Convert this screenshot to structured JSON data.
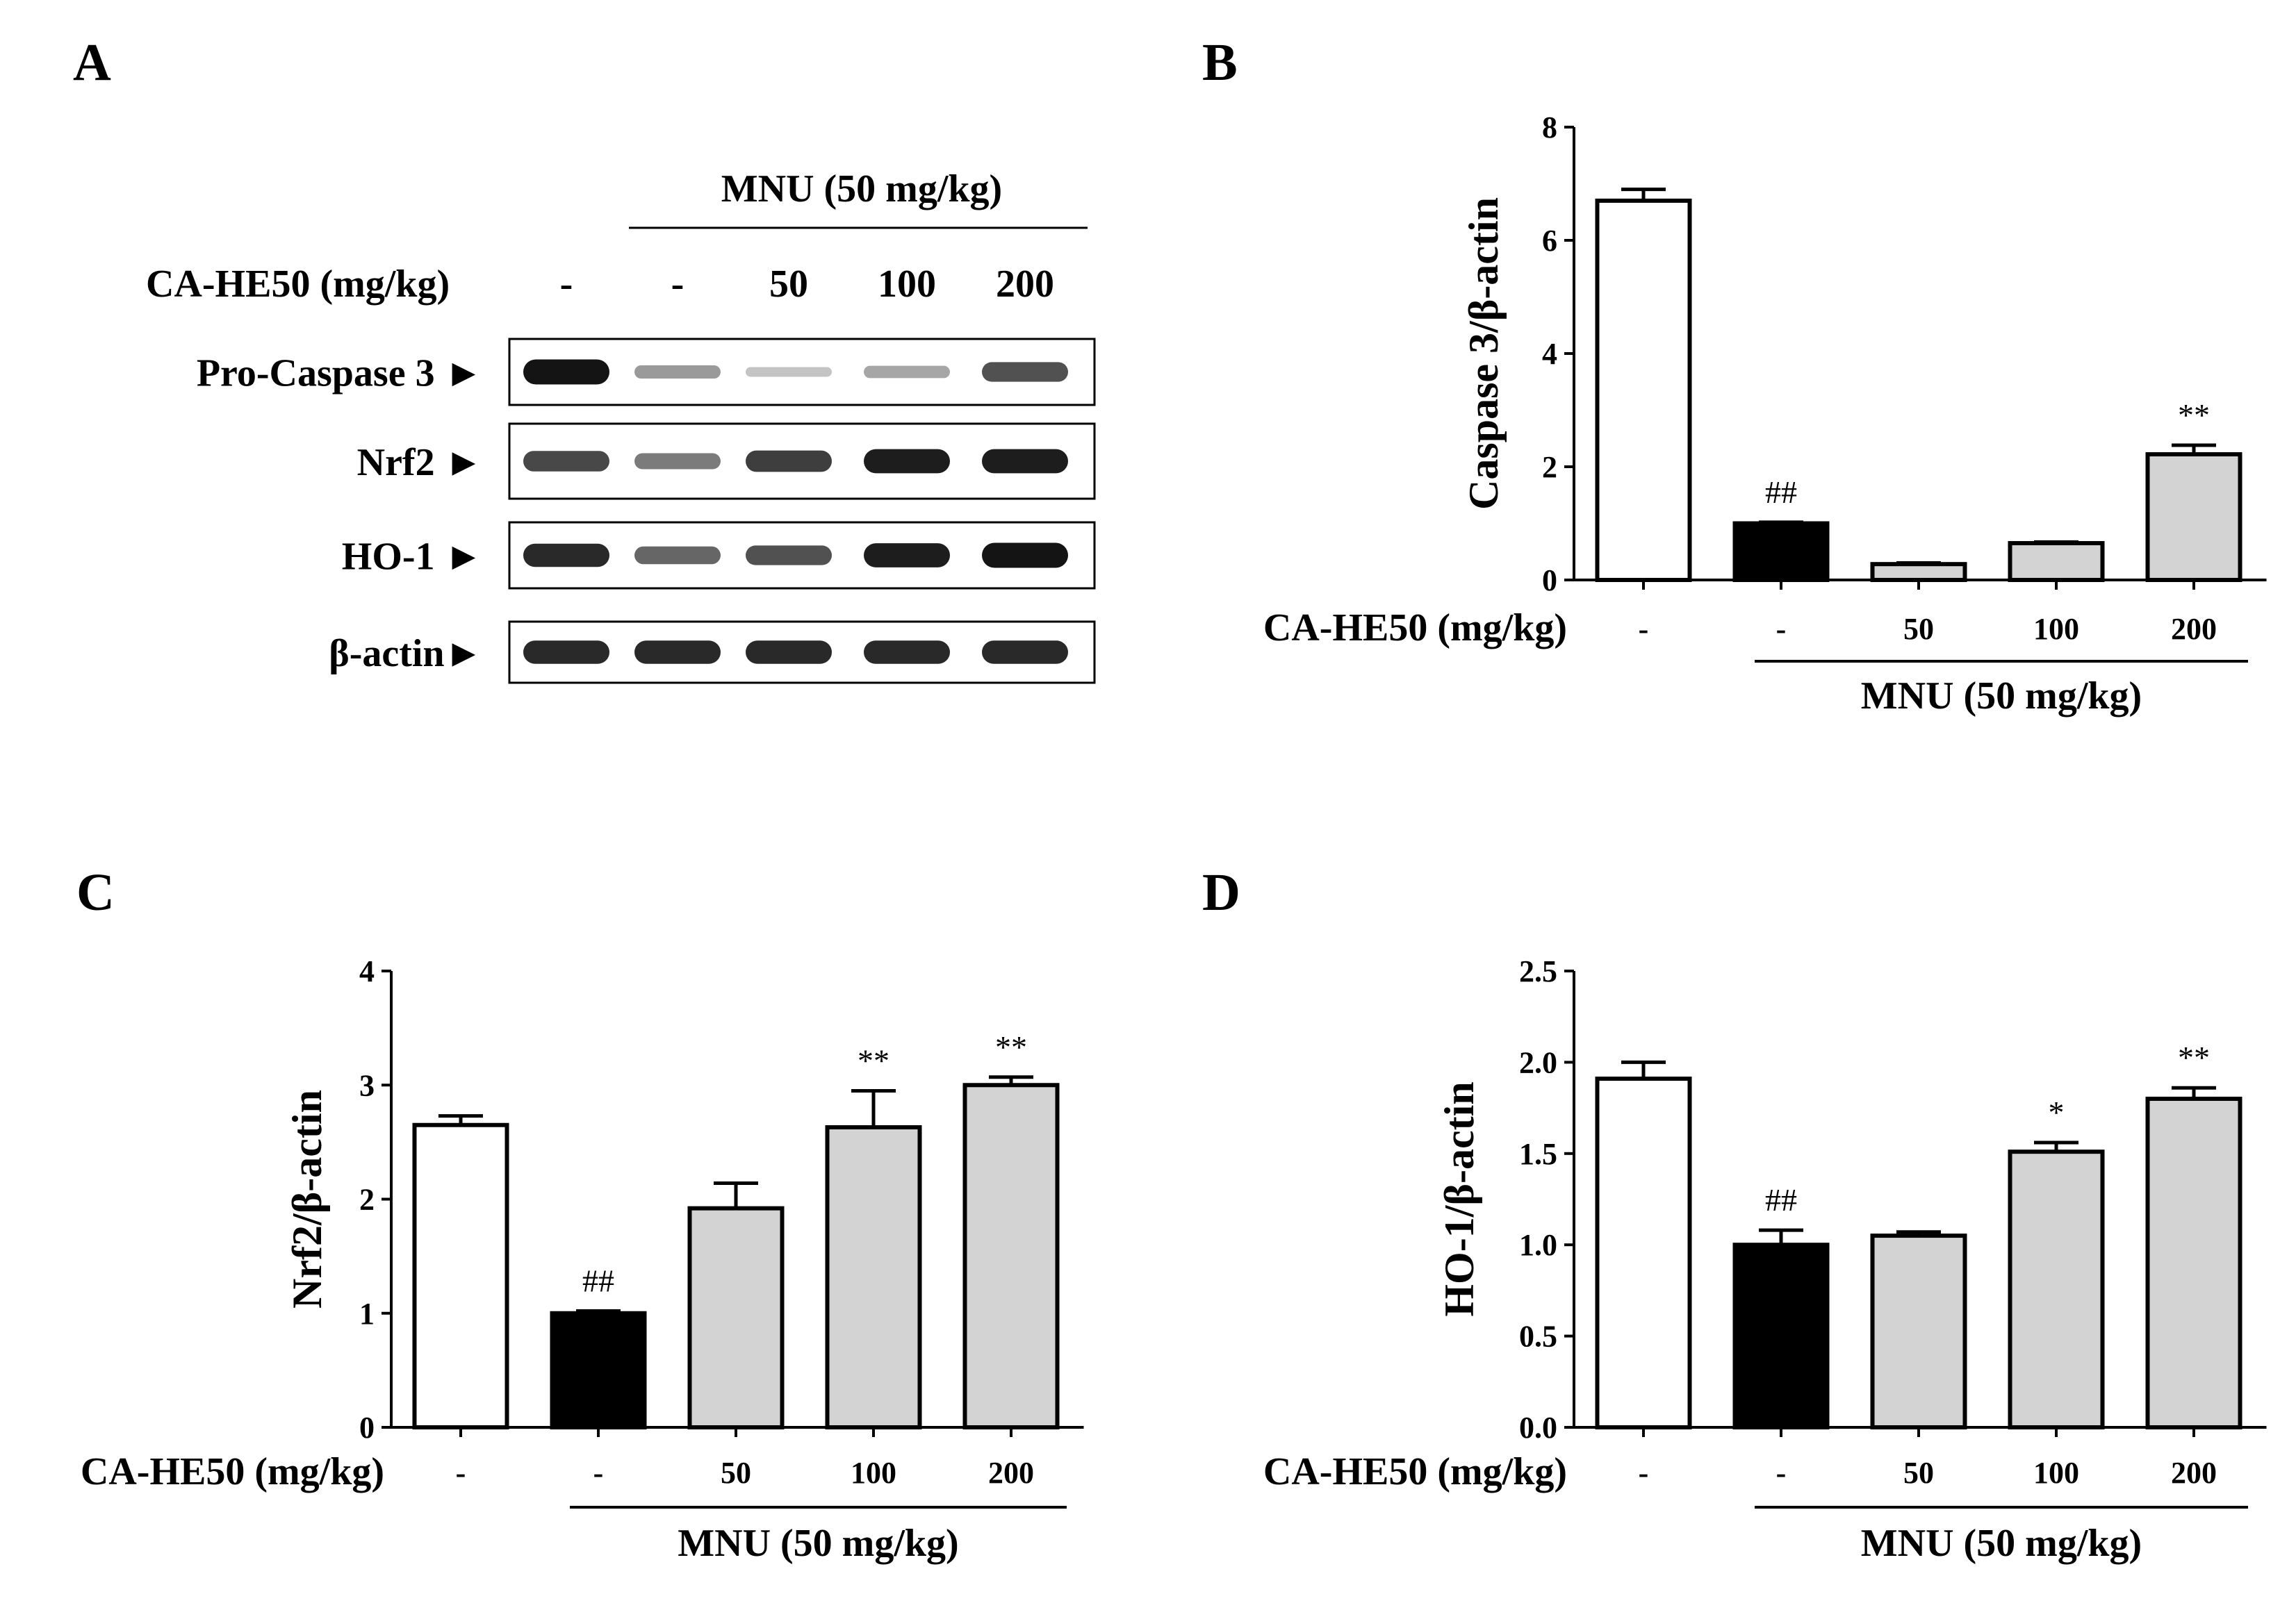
{
  "blot": {
    "panel_label": "A",
    "mnu_header": "MNU (50 mg/kg)",
    "treatment_label": "CA-HE50 (mg/kg)",
    "lanes": [
      "-",
      "-",
      "50",
      "100",
      "200"
    ],
    "rows": [
      {
        "label": "Pro-Caspase 3 ►",
        "intensities": [
          1.0,
          0.35,
          0.15,
          0.3,
          0.7
        ]
      },
      {
        "label": "Nrf2 ►",
        "intensities": [
          0.75,
          0.5,
          0.8,
          0.95,
          0.95
        ]
      },
      {
        "label": "HO-1 ►",
        "intensities": [
          0.9,
          0.6,
          0.7,
          0.95,
          1.0
        ]
      },
      {
        "label": "β-actin►",
        "intensities": [
          0.9,
          0.9,
          0.9,
          0.9,
          0.9
        ]
      }
    ]
  },
  "chart_data": [
    {
      "panel": "B",
      "type": "bar",
      "ylabel": "Caspase 3/β-actin",
      "ylim": [
        0,
        8
      ],
      "ytick_labels": [
        "0",
        "2",
        "4",
        "6",
        "8"
      ],
      "categories": [
        "-",
        "-",
        "50",
        "100",
        "200"
      ],
      "values": [
        6.7,
        1.0,
        0.28,
        0.65,
        2.22
      ],
      "errors": [
        0.2,
        0.02,
        0.02,
        0.02,
        0.16
      ],
      "annotations": [
        "",
        "##",
        "",
        "",
        "**"
      ],
      "treatment_label": "CA-HE50 (mg/kg)",
      "group_label": "MNU (50 mg/kg)"
    },
    {
      "panel": "C",
      "type": "bar",
      "ylabel": "Nrf2/β-actin",
      "ylim": [
        0,
        4
      ],
      "ytick_labels": [
        "0",
        "1",
        "2",
        "3",
        "4"
      ],
      "categories": [
        "-",
        "-",
        "50",
        "100",
        "200"
      ],
      "values": [
        2.65,
        1.0,
        1.92,
        2.63,
        3.0
      ],
      "errors": [
        0.08,
        0.02,
        0.22,
        0.32,
        0.07
      ],
      "annotations": [
        "",
        "##",
        "",
        "**",
        "**"
      ],
      "treatment_label": "CA-HE50 (mg/kg)",
      "group_label": "MNU (50 mg/kg)"
    },
    {
      "panel": "D",
      "type": "bar",
      "ylabel": "HO-1/β-actin",
      "ylim": [
        0,
        2.5
      ],
      "ytick_labels": [
        "0.0",
        "0.5",
        "1.0",
        "1.5",
        "2.0",
        "2.5"
      ],
      "categories": [
        "-",
        "-",
        "50",
        "100",
        "200"
      ],
      "values": [
        1.91,
        1.0,
        1.05,
        1.51,
        1.8
      ],
      "errors": [
        0.09,
        0.08,
        0.02,
        0.05,
        0.06
      ],
      "annotations": [
        "",
        "##",
        "",
        "*",
        "**"
      ],
      "treatment_label": "CA-HE50 (mg/kg)",
      "group_label": "MNU (50 mg/kg)"
    }
  ],
  "colors": {
    "control_fill": "#ffffff",
    "mnu_fill": "#000000",
    "treated_fill": "#d3d3d3",
    "stroke": "#000000",
    "band": "#141414"
  }
}
